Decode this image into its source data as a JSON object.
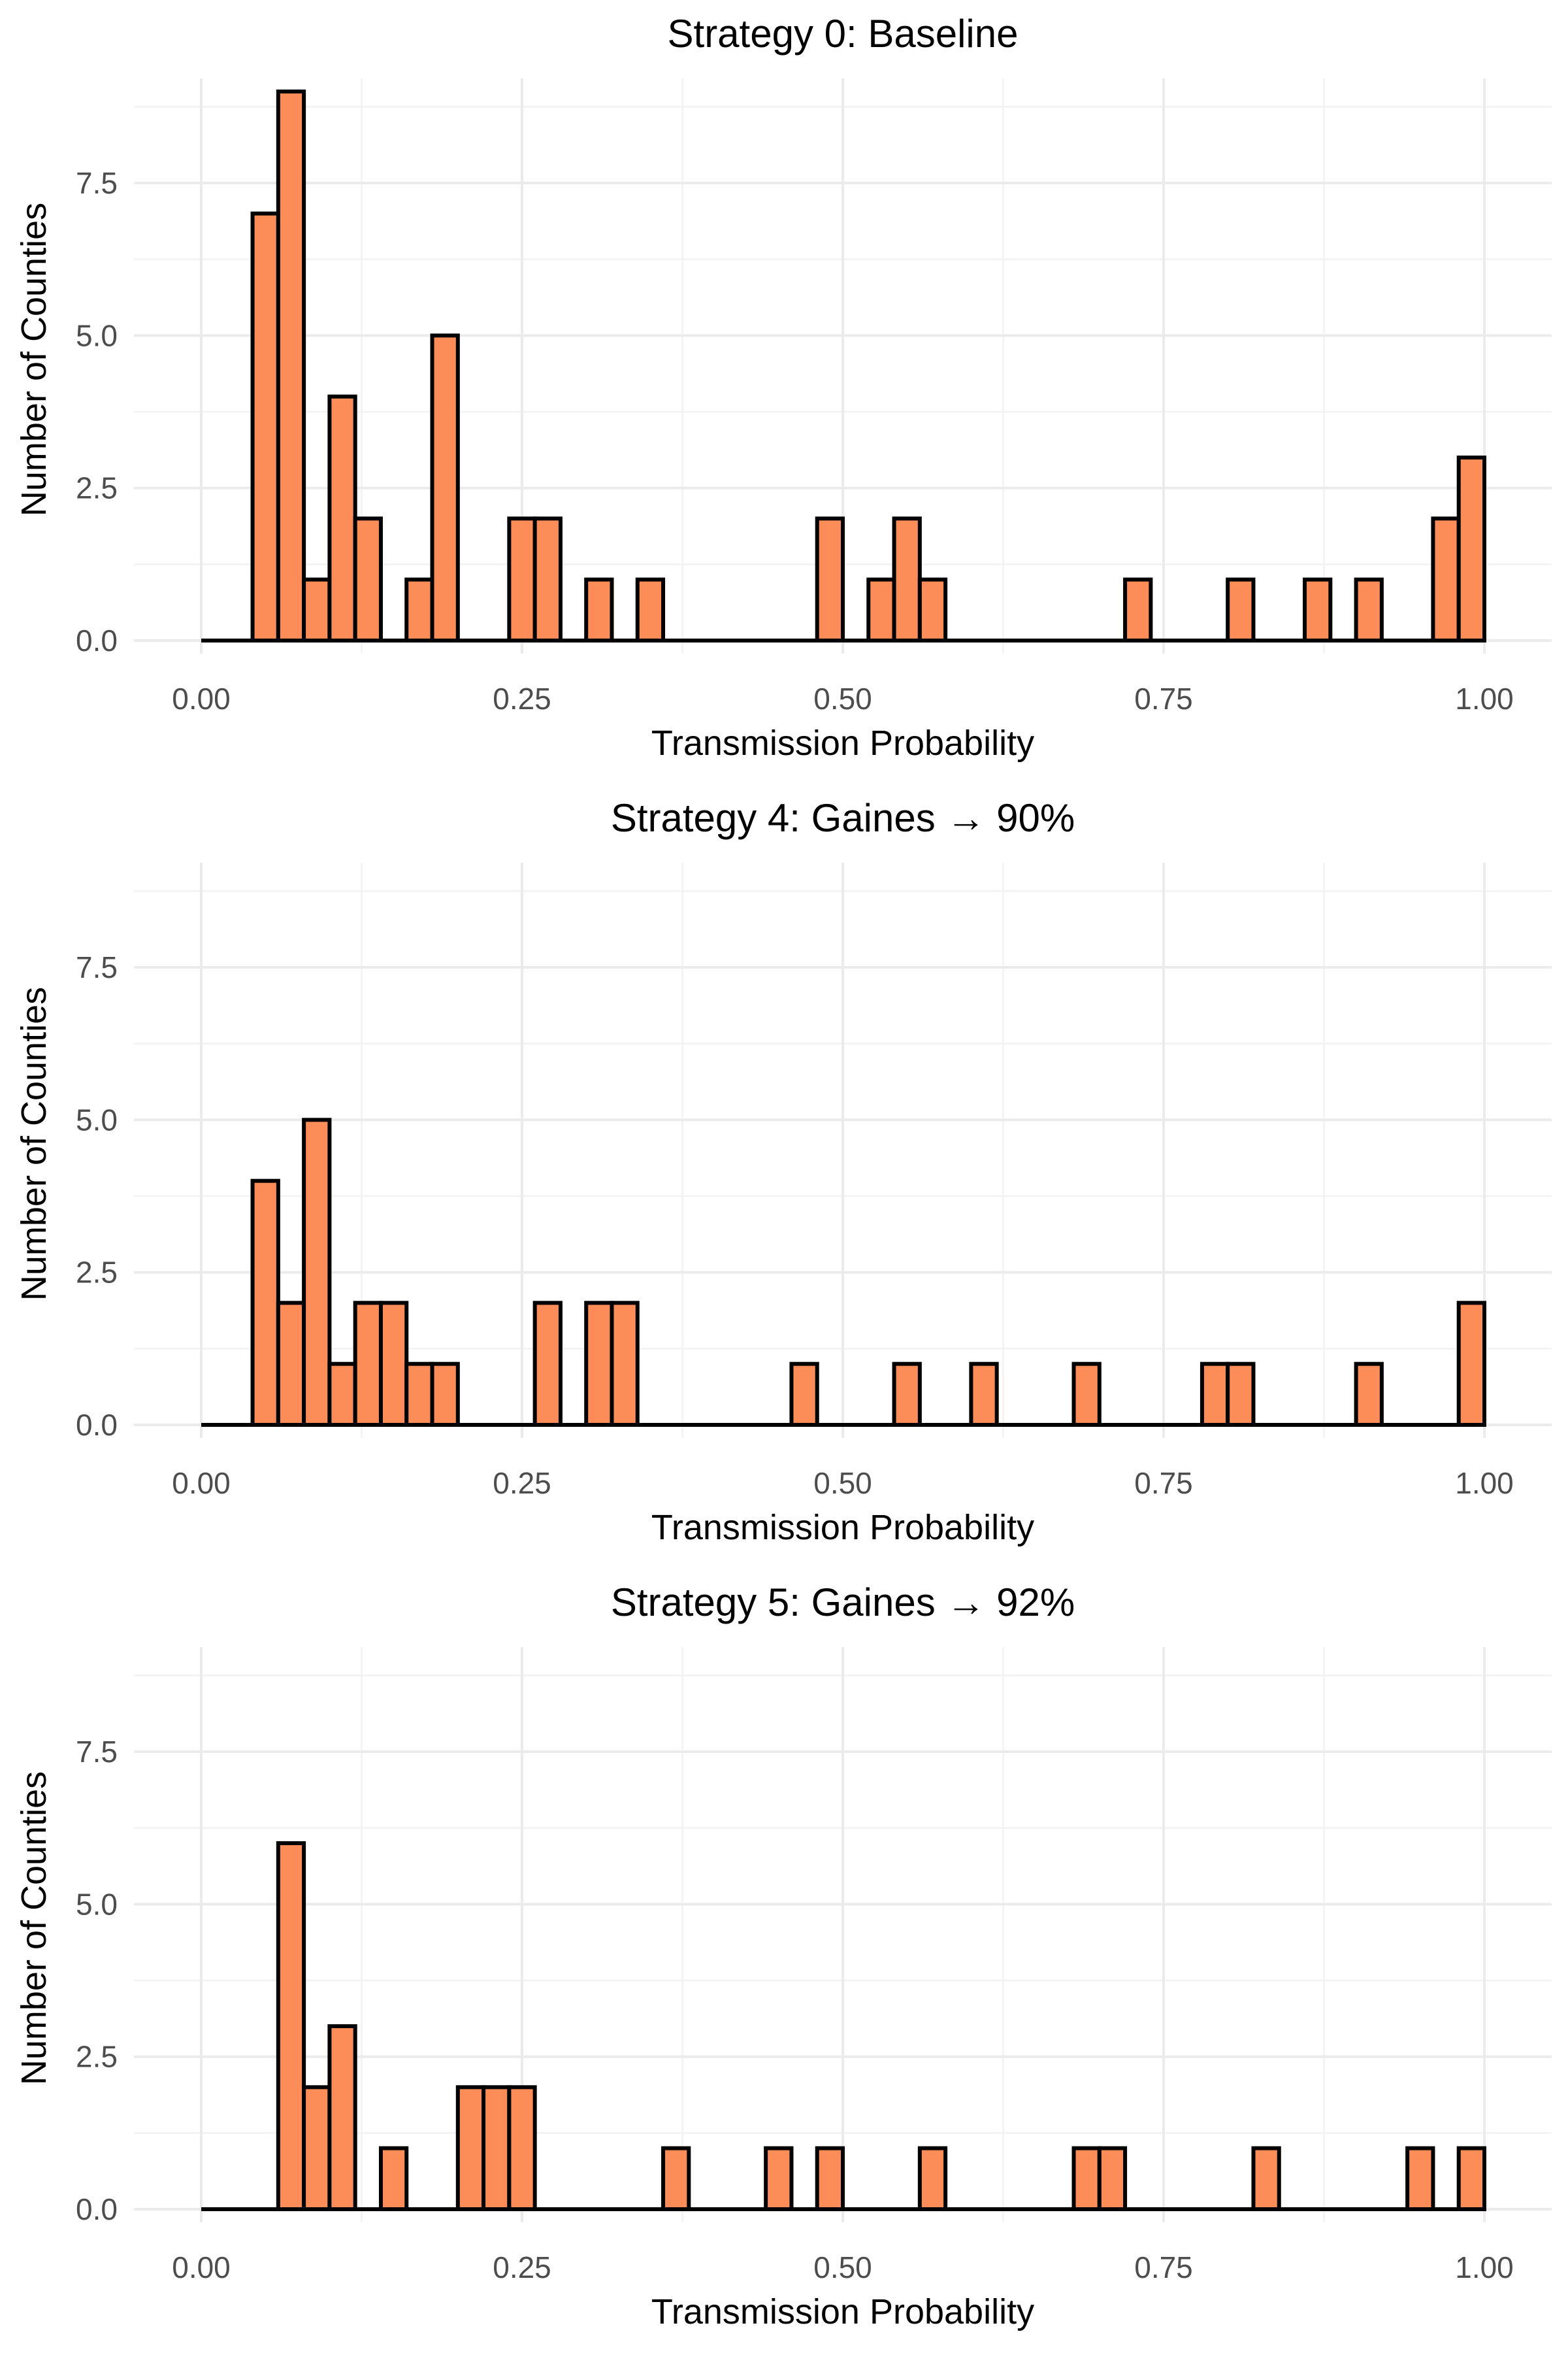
{
  "chart_data": [
    {
      "type": "bar",
      "title": "Strategy 0: Baseline",
      "xlabel": "Transmission Probability",
      "ylabel": "Number of Counties",
      "xlim": [
        0,
        1
      ],
      "ylim": [
        0,
        9
      ],
      "x_ticks": [
        "0.00",
        "0.25",
        "0.50",
        "0.75",
        "1.00"
      ],
      "y_ticks": [
        "0.0",
        "2.5",
        "5.0",
        "7.5"
      ],
      "bin_width": 0.02,
      "bins": [
        {
          "x": 0.05,
          "count": 7
        },
        {
          "x": 0.07,
          "count": 9
        },
        {
          "x": 0.09,
          "count": 1
        },
        {
          "x": 0.11,
          "count": 4
        },
        {
          "x": 0.13,
          "count": 2
        },
        {
          "x": 0.17,
          "count": 1
        },
        {
          "x": 0.19,
          "count": 5
        },
        {
          "x": 0.25,
          "count": 2
        },
        {
          "x": 0.27,
          "count": 2
        },
        {
          "x": 0.31,
          "count": 1
        },
        {
          "x": 0.35,
          "count": 1
        },
        {
          "x": 0.49,
          "count": 2
        },
        {
          "x": 0.53,
          "count": 1
        },
        {
          "x": 0.55,
          "count": 2
        },
        {
          "x": 0.57,
          "count": 1
        },
        {
          "x": 0.73,
          "count": 1
        },
        {
          "x": 0.81,
          "count": 1
        },
        {
          "x": 0.87,
          "count": 1
        },
        {
          "x": 0.91,
          "count": 1
        },
        {
          "x": 0.97,
          "count": 2
        },
        {
          "x": 0.99,
          "count": 3
        }
      ],
      "grid": true
    },
    {
      "type": "bar",
      "title": "Strategy 4: Gaines → 90%",
      "xlabel": "Transmission Probability",
      "ylabel": "Number of Counties",
      "xlim": [
        0,
        1
      ],
      "ylim": [
        0,
        9
      ],
      "x_ticks": [
        "0.00",
        "0.25",
        "0.50",
        "0.75",
        "1.00"
      ],
      "y_ticks": [
        "0.0",
        "2.5",
        "5.0",
        "7.5"
      ],
      "bin_width": 0.02,
      "bins": [
        {
          "x": 0.05,
          "count": 4
        },
        {
          "x": 0.07,
          "count": 2
        },
        {
          "x": 0.09,
          "count": 5
        },
        {
          "x": 0.11,
          "count": 1
        },
        {
          "x": 0.13,
          "count": 2
        },
        {
          "x": 0.15,
          "count": 2
        },
        {
          "x": 0.17,
          "count": 1
        },
        {
          "x": 0.19,
          "count": 1
        },
        {
          "x": 0.27,
          "count": 2
        },
        {
          "x": 0.31,
          "count": 2
        },
        {
          "x": 0.33,
          "count": 2
        },
        {
          "x": 0.47,
          "count": 1
        },
        {
          "x": 0.55,
          "count": 1
        },
        {
          "x": 0.61,
          "count": 1
        },
        {
          "x": 0.69,
          "count": 1
        },
        {
          "x": 0.79,
          "count": 1
        },
        {
          "x": 0.81,
          "count": 1
        },
        {
          "x": 0.91,
          "count": 1
        },
        {
          "x": 0.99,
          "count": 2
        }
      ],
      "grid": true
    },
    {
      "type": "bar",
      "title": "Strategy 5: Gaines → 92%",
      "xlabel": "Transmission Probability",
      "ylabel": "Number of Counties",
      "xlim": [
        0,
        1
      ],
      "ylim": [
        0,
        9
      ],
      "x_ticks": [
        "0.00",
        "0.25",
        "0.50",
        "0.75",
        "1.00"
      ],
      "y_ticks": [
        "0.0",
        "2.5",
        "5.0",
        "7.5"
      ],
      "bin_width": 0.02,
      "bins": [
        {
          "x": 0.07,
          "count": 6
        },
        {
          "x": 0.09,
          "count": 2
        },
        {
          "x": 0.11,
          "count": 3
        },
        {
          "x": 0.15,
          "count": 1
        },
        {
          "x": 0.21,
          "count": 2
        },
        {
          "x": 0.23,
          "count": 2
        },
        {
          "x": 0.25,
          "count": 2
        },
        {
          "x": 0.37,
          "count": 1
        },
        {
          "x": 0.45,
          "count": 1
        },
        {
          "x": 0.49,
          "count": 1
        },
        {
          "x": 0.57,
          "count": 1
        },
        {
          "x": 0.69,
          "count": 1
        },
        {
          "x": 0.71,
          "count": 1
        },
        {
          "x": 0.83,
          "count": 1
        },
        {
          "x": 0.95,
          "count": 1
        },
        {
          "x": 0.99,
          "count": 1
        }
      ],
      "grid": true
    }
  ],
  "colors": {
    "bar_fill": "#fc8d59",
    "bar_outline": "#000000",
    "grid": "#ebebeb",
    "background": "#ffffff"
  }
}
